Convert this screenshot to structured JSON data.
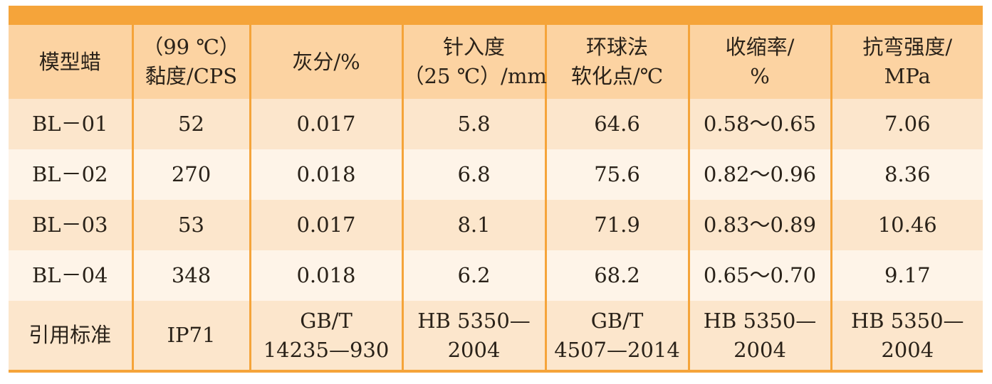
{
  "table": {
    "headers": [
      [
        "模型蜡"
      ],
      [
        "（99 ℃）",
        "黏度/CPS"
      ],
      [
        "灰分/%"
      ],
      [
        "针入度",
        "（25 ℃）/mm"
      ],
      [
        "环球法",
        "软化点/℃"
      ],
      [
        "收缩率/",
        "%"
      ],
      [
        "抗弯强度/",
        "MPa"
      ]
    ],
    "rows": [
      [
        "BL－01",
        "52",
        "0.017",
        "5.8",
        "64.6",
        "0.58～0.65",
        "7.06"
      ],
      [
        "BL－02",
        "270",
        "0.018",
        "6.8",
        "75.6",
        "0.82～0.96",
        "8.36"
      ],
      [
        "BL－03",
        "53",
        "0.017",
        "8.1",
        "71.9",
        "0.83～0.89",
        "10.46"
      ],
      [
        "BL－04",
        "348",
        "0.018",
        "6.2",
        "68.2",
        "0.65～0.70",
        "9.17"
      ]
    ],
    "standard_row": [
      [
        "引用标准"
      ],
      [
        "IP71"
      ],
      [
        "GB/T",
        "14235—930"
      ],
      [
        "HB 5350—",
        "2004"
      ],
      [
        "GB/T",
        "4507—2014"
      ],
      [
        "HB 5350—",
        "2004"
      ],
      [
        "HB 5350—",
        "2004"
      ]
    ]
  },
  "colors": {
    "accent": "#f5a43a",
    "header_bg": "#fcd3a2",
    "row_bg_odd": "#fce6cc",
    "row_bg_even": "#fef4e8"
  }
}
